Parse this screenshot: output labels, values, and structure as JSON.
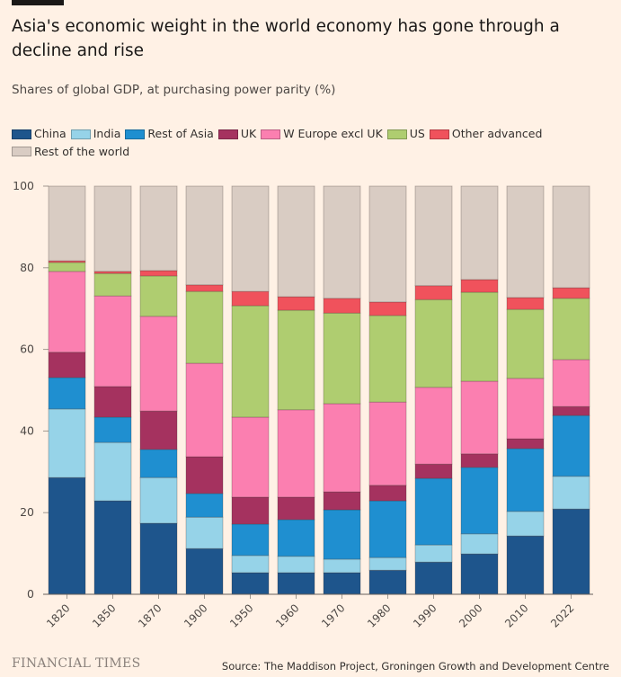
{
  "title": "Asia's economic weight in the world economy has gone through a decline and rise",
  "subtitle": "Shares of global GDP, at purchasing power parity (%)",
  "footer": {
    "logo": "FINANCIAL TIMES",
    "source": "Source: The Maddison Project, Groningen Growth and Development Centre"
  },
  "chart_data": {
    "type": "bar",
    "stacked": true,
    "title": "Asia's economic weight in the world economy has gone through a decline and rise",
    "ylabel": "Shares of global GDP, at purchasing power parity (%)",
    "ylim": [
      0,
      100
    ],
    "yticks": [
      "0",
      "20",
      "40",
      "60",
      "80",
      "100"
    ],
    "grid": false,
    "legend": "top-left",
    "categories": [
      "1820",
      "1850",
      "1870",
      "1900",
      "1950",
      "1960",
      "1970",
      "1980",
      "1990",
      "2000",
      "2010",
      "2022"
    ],
    "series": [
      {
        "name": "China",
        "color": "#1e558c",
        "values": [
          28.6,
          22.9,
          17.4,
          11.2,
          5.3,
          5.3,
          5.3,
          5.9,
          7.9,
          9.9,
          14.3,
          20.9
        ]
      },
      {
        "name": "India",
        "color": "#96d3e8",
        "values": [
          16.8,
          14.3,
          11.2,
          7.7,
          4.2,
          4.0,
          3.3,
          3.1,
          4.2,
          4.9,
          6.0,
          8.0
        ]
      },
      {
        "name": "Rest of Asia",
        "color": "#1f8fd0",
        "values": [
          7.7,
          6.2,
          6.9,
          5.8,
          7.7,
          9.0,
          12.1,
          13.9,
          16.3,
          16.3,
          15.4,
          14.9
        ]
      },
      {
        "name": "UK",
        "color": "#a5325f",
        "values": [
          6.2,
          7.5,
          9.4,
          9.0,
          6.6,
          5.5,
          4.4,
          3.8,
          3.5,
          3.3,
          2.4,
          2.2
        ]
      },
      {
        "name": "W Europe excl UK",
        "color": "#fb7fb0",
        "values": [
          19.8,
          22.2,
          23.2,
          22.9,
          19.6,
          21.4,
          21.6,
          20.4,
          18.8,
          17.8,
          14.8,
          11.5
        ]
      },
      {
        "name": "US",
        "color": "#afcd70",
        "values": [
          2.2,
          5.5,
          9.9,
          17.6,
          27.3,
          24.4,
          22.2,
          21.2,
          21.5,
          21.8,
          16.9,
          15.0
        ]
      },
      {
        "name": "Other advanced",
        "color": "#f0525c",
        "values": [
          0.4,
          0.5,
          1.3,
          1.6,
          3.5,
          3.3,
          3.6,
          3.3,
          3.4,
          3.1,
          2.9,
          2.6
        ]
      },
      {
        "name": "Rest of the world",
        "color": "#d9ccc3",
        "values": [
          18.3,
          20.9,
          20.7,
          24.2,
          25.8,
          27.1,
          27.5,
          28.4,
          24.4,
          22.9,
          27.3,
          24.9
        ]
      }
    ]
  }
}
